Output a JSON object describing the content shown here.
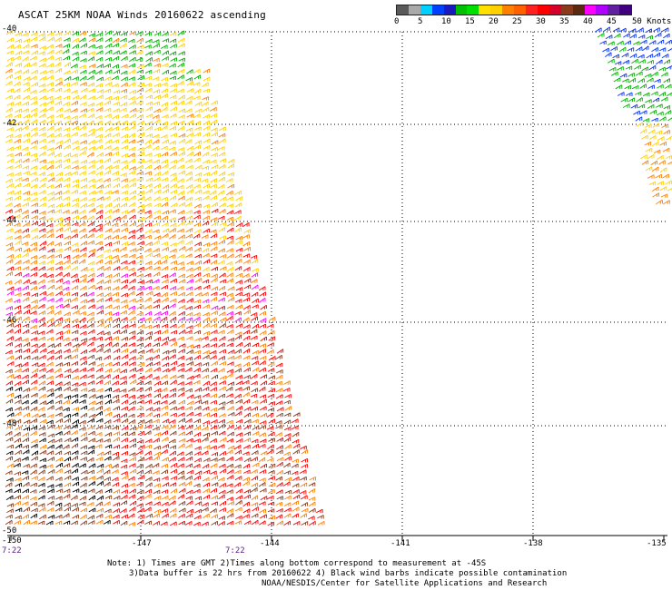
{
  "title": "ASCAT 25KM NOAA Winds 20160622 ascending",
  "legend": {
    "colors": [
      "#5a5a5a",
      "#aaaaaa",
      "#00d0ff",
      "#0040ff",
      "#1a1ac0",
      "#00c000",
      "#00e000",
      "#ffe000",
      "#ffd000",
      "#ff8000",
      "#ff6000",
      "#ff2020",
      "#ff0000",
      "#d4002a",
      "#8a3a1a",
      "#5a2a10",
      "#ff00ff",
      "#b000ff",
      "#6020a0",
      "#400080"
    ],
    "tick_labels": [
      "0",
      "5",
      "10",
      "15",
      "20",
      "25",
      "30",
      "35",
      "40",
      "45",
      "50 Knots"
    ]
  },
  "axes": {
    "lat_labels": [
      "-40",
      "-42",
      "-44",
      "-46",
      "-48",
      "-50"
    ],
    "lon_labels": [
      "-150",
      "-147",
      "-144",
      "-141",
      "-138",
      "-135"
    ]
  },
  "time_labels": [
    "7:22",
    "7:22"
  ],
  "notes": [
    "Note: 1) Times are GMT 2)Times along bottom correspond to measurement at -45S",
    "3)Data buffer is 22 hrs from 20160622 4) Black wind barbs indicate possible contamination",
    "NOAA/NESDIS/Center for Satellite Applications and Research"
  ],
  "colors": {
    "grid": "#000000",
    "speed_yellow": "#ffd000",
    "speed_green": "#00b000",
    "speed_blue": "#0030ff",
    "speed_orange": "#ff8000",
    "speed_red": "#ff0000",
    "speed_brown": "#8a3a1a",
    "speed_black": "#000000",
    "speed_magenta": "#ff00ff"
  }
}
